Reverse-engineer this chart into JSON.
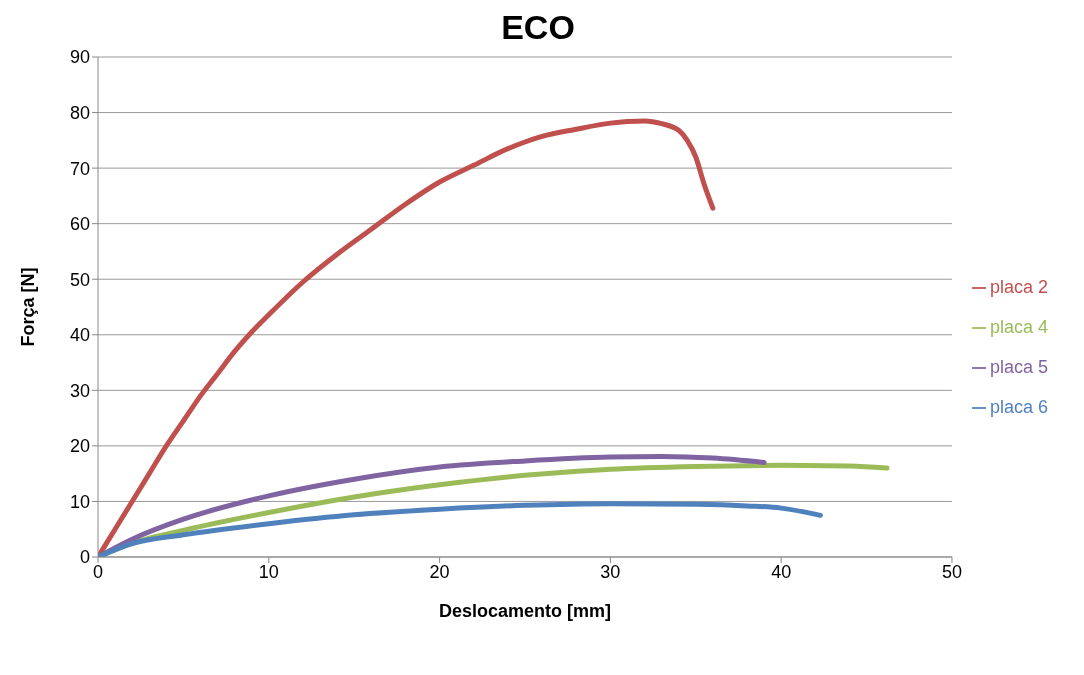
{
  "chart_data": {
    "type": "line",
    "title": "ECO",
    "xlabel": "Deslocamento [mm]",
    "ylabel": "Força [N]",
    "xlim": [
      0,
      50
    ],
    "xticks": [
      0,
      10,
      20,
      30,
      40,
      50
    ],
    "ylim": [
      0,
      90
    ],
    "yticks": [
      0,
      10,
      20,
      30,
      40,
      50,
      60,
      70,
      80,
      90
    ],
    "grid": "y",
    "legend": "right",
    "marker": "none",
    "line_style": "solid",
    "series": [
      {
        "name": "placa 2",
        "color": "#c0504d",
        "x": [
          0,
          1,
          2,
          3,
          4,
          5,
          6,
          7,
          8,
          9,
          10,
          12,
          14,
          16,
          18,
          20,
          22,
          24,
          25,
          26,
          28,
          30,
          31,
          32,
          33,
          34,
          34.5,
          35,
          35.5,
          36
        ],
        "values": [
          0,
          5,
          10,
          15,
          20,
          24.5,
          29,
          33,
          37,
          40.5,
          43.6,
          49.5,
          54.5,
          59,
          63.5,
          67.5,
          70.5,
          73.5,
          74.7,
          75.7,
          77,
          78.1,
          78.4,
          78.5,
          78,
          76.8,
          75,
          72,
          67,
          62.8
        ]
      },
      {
        "name": "placa 4",
        "color": "#9bbb59",
        "x": [
          0,
          2,
          5,
          10,
          15,
          20,
          25,
          30,
          35,
          40,
          44,
          46.2
        ],
        "values": [
          0,
          2.5,
          4.8,
          8,
          10.8,
          13,
          14.7,
          15.8,
          16.3,
          16.5,
          16.4,
          16
        ]
      },
      {
        "name": "placa 5",
        "color": "#8064a2",
        "x": [
          0,
          2,
          5,
          10,
          15,
          20,
          25,
          30,
          33,
          36,
          39
        ],
        "values": [
          0,
          3.2,
          6.8,
          11,
          14,
          16.2,
          17.3,
          18,
          18.1,
          17.8,
          17
        ]
      },
      {
        "name": "placa 6",
        "color": "#4f81bd",
        "x": [
          0,
          2,
          5,
          10,
          15,
          20,
          25,
          30,
          35,
          38,
          40,
          42.3
        ],
        "values": [
          0,
          2.4,
          4,
          6,
          7.6,
          8.6,
          9.3,
          9.6,
          9.5,
          9.2,
          8.8,
          7.5
        ]
      }
    ]
  }
}
